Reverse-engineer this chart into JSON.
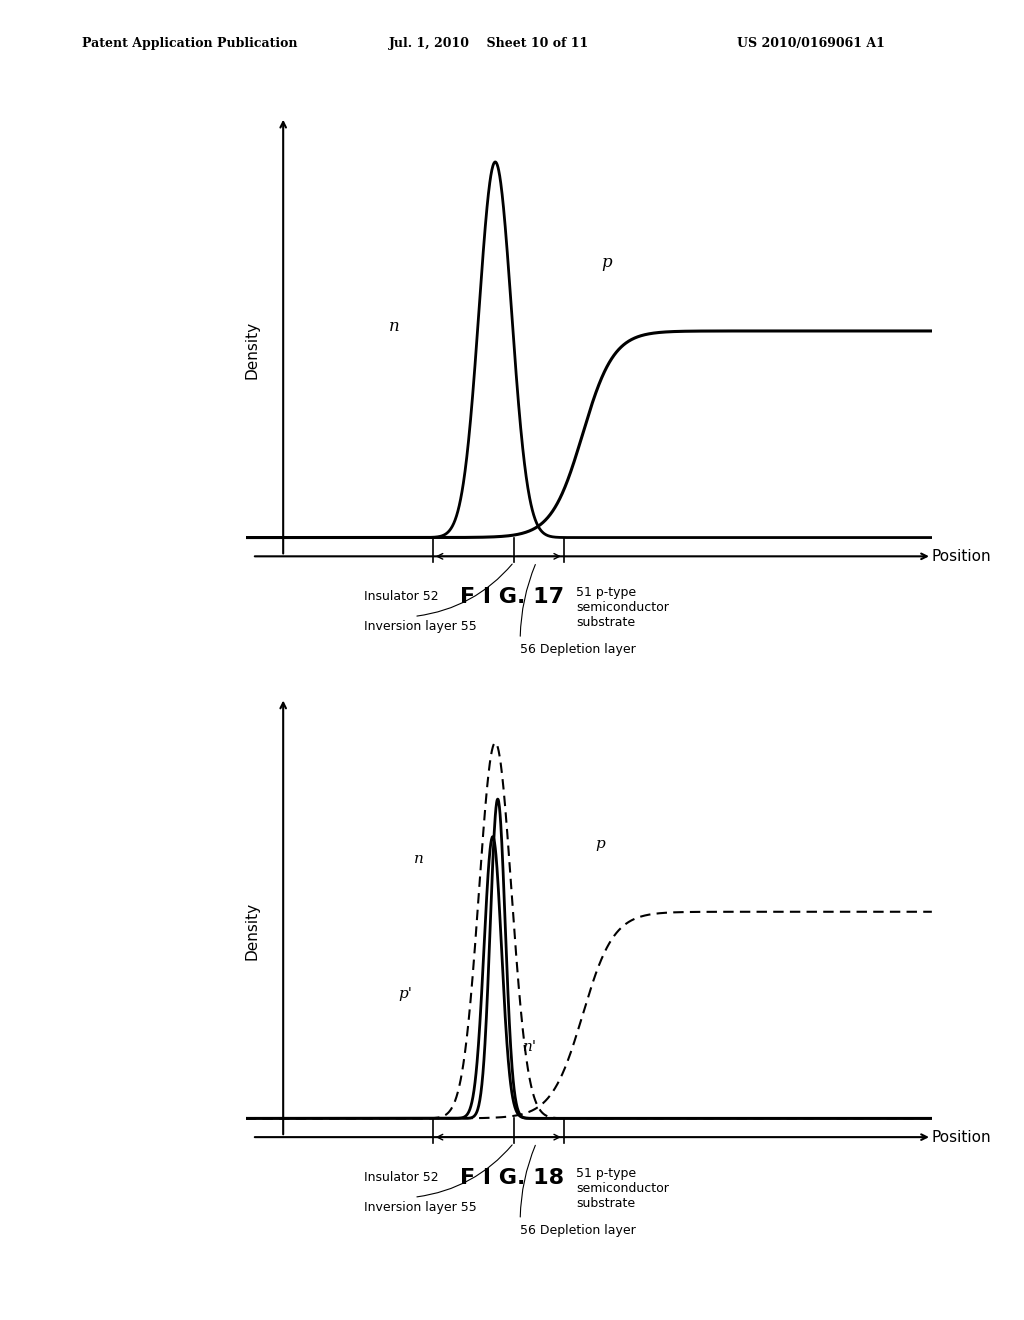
{
  "header_left": "Patent Application Publication",
  "header_mid": "Jul. 1, 2010    Sheet 10 of 11",
  "header_right": "US 2010/0169061 A1",
  "fig17_title": "F I G. 17",
  "fig18_title": "F I G. 18",
  "ylabel": "Density",
  "xlabel": "Position",
  "label_insulator": "Insulator 52",
  "label_inversion": "Inversion layer 55",
  "label_depletion": "56 Depletion layer",
  "label_51": "51 p-type\nsemiconductor\nsubstrate",
  "bg_color": "#ffffff",
  "line_color": "#000000"
}
